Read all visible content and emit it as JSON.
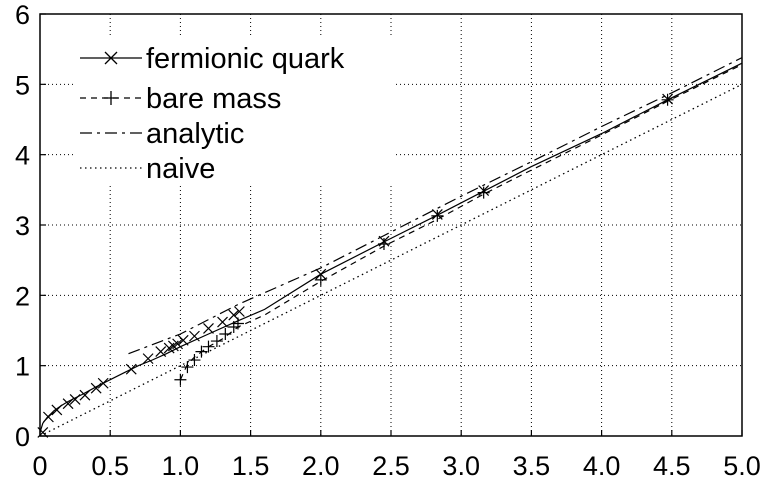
{
  "chart_data": {
    "type": "line",
    "title": "",
    "xlabel": "",
    "ylabel": "",
    "xlim": [
      0,
      5.0
    ],
    "ylim": [
      0,
      6
    ],
    "x_ticks": [
      "0",
      "0.5",
      "1.0",
      "1.5",
      "2.0",
      "2.5",
      "3.0",
      "3.5",
      "4.0",
      "4.5",
      "5.0"
    ],
    "x_tick_values": [
      0,
      0.5,
      1.0,
      1.5,
      2.0,
      2.5,
      3.0,
      3.5,
      4.0,
      4.5,
      5.0
    ],
    "y_ticks": [
      "0",
      "1",
      "2",
      "3",
      "4",
      "5",
      "6"
    ],
    "y_tick_values": [
      0,
      1,
      2,
      3,
      4,
      5,
      6
    ],
    "grid": "dotted",
    "legend_position": "top-left",
    "series": [
      {
        "name": "fermionic quark",
        "style": "solid",
        "marker": "x",
        "line": [
          [
            0,
            0.05
          ],
          [
            0.02,
            0.18
          ],
          [
            0.05,
            0.26
          ],
          [
            0.1,
            0.36
          ],
          [
            0.15,
            0.43
          ],
          [
            0.2,
            0.49
          ],
          [
            0.3,
            0.59
          ],
          [
            0.4,
            0.7
          ],
          [
            0.5,
            0.8
          ],
          [
            0.6,
            0.9
          ],
          [
            0.7,
            1.0
          ],
          [
            0.8,
            1.08
          ],
          [
            0.9,
            1.17
          ],
          [
            1.0,
            1.27
          ],
          [
            1.2,
            1.45
          ],
          [
            1.4,
            1.63
          ],
          [
            1.6,
            1.8
          ],
          [
            2.0,
            2.3
          ],
          [
            2.45,
            2.76
          ],
          [
            2.83,
            3.14
          ],
          [
            3.16,
            3.48
          ],
          [
            3.5,
            3.83
          ],
          [
            4.0,
            4.3
          ],
          [
            4.47,
            4.78
          ],
          [
            5.0,
            5.3
          ]
        ],
        "points": [
          [
            0.02,
            0.05
          ],
          [
            0.06,
            0.27
          ],
          [
            0.12,
            0.37
          ],
          [
            0.2,
            0.46
          ],
          [
            0.25,
            0.52
          ],
          [
            0.32,
            0.58
          ],
          [
            0.4,
            0.68
          ],
          [
            0.45,
            0.75
          ],
          [
            0.65,
            0.95
          ],
          [
            0.77,
            1.1
          ],
          [
            0.86,
            1.2
          ],
          [
            0.92,
            1.25
          ],
          [
            0.95,
            1.28
          ],
          [
            0.98,
            1.31
          ],
          [
            1.02,
            1.36
          ],
          [
            1.1,
            1.42
          ],
          [
            1.2,
            1.53
          ],
          [
            1.3,
            1.62
          ],
          [
            1.38,
            1.72
          ],
          [
            1.42,
            1.77
          ],
          [
            2.0,
            2.3
          ],
          [
            2.45,
            2.77
          ],
          [
            2.83,
            3.15
          ],
          [
            3.16,
            3.49
          ],
          [
            4.47,
            4.79
          ]
        ]
      },
      {
        "name": "bare mass",
        "style": "dashed",
        "marker": "+",
        "line": [
          [
            1.0,
            0.8
          ],
          [
            1.05,
            1.02
          ],
          [
            1.1,
            1.12
          ],
          [
            1.2,
            1.27
          ],
          [
            1.3,
            1.38
          ],
          [
            1.41,
            1.55
          ],
          [
            1.6,
            1.72
          ],
          [
            2.0,
            2.2
          ],
          [
            2.45,
            2.7
          ],
          [
            2.83,
            3.08
          ],
          [
            3.16,
            3.44
          ],
          [
            3.5,
            3.78
          ],
          [
            4.0,
            4.28
          ],
          [
            4.47,
            4.76
          ],
          [
            5.0,
            5.28
          ]
        ],
        "points": [
          [
            1.0,
            0.8
          ],
          [
            1.05,
            0.98
          ],
          [
            1.1,
            1.08
          ],
          [
            1.15,
            1.2
          ],
          [
            1.2,
            1.27
          ],
          [
            1.26,
            1.35
          ],
          [
            1.32,
            1.45
          ],
          [
            1.38,
            1.55
          ],
          [
            1.41,
            1.6
          ],
          [
            2.0,
            2.22
          ],
          [
            2.45,
            2.73
          ],
          [
            2.83,
            3.13
          ],
          [
            3.16,
            3.46
          ],
          [
            4.47,
            4.78
          ]
        ]
      },
      {
        "name": "analytic",
        "style": "dash-dot",
        "marker": "none",
        "line": [
          [
            0.63,
            1.17
          ],
          [
            1.0,
            1.45
          ],
          [
            1.41,
            1.87
          ],
          [
            2.0,
            2.39
          ],
          [
            2.5,
            2.9
          ],
          [
            3.0,
            3.41
          ],
          [
            3.5,
            3.9
          ],
          [
            4.0,
            4.4
          ],
          [
            4.5,
            4.88
          ],
          [
            5.0,
            5.38
          ]
        ],
        "points": []
      },
      {
        "name": "naive",
        "style": "dotted",
        "marker": "none",
        "line": [
          [
            0,
            0
          ],
          [
            5.0,
            5.0
          ]
        ],
        "points": []
      }
    ]
  }
}
